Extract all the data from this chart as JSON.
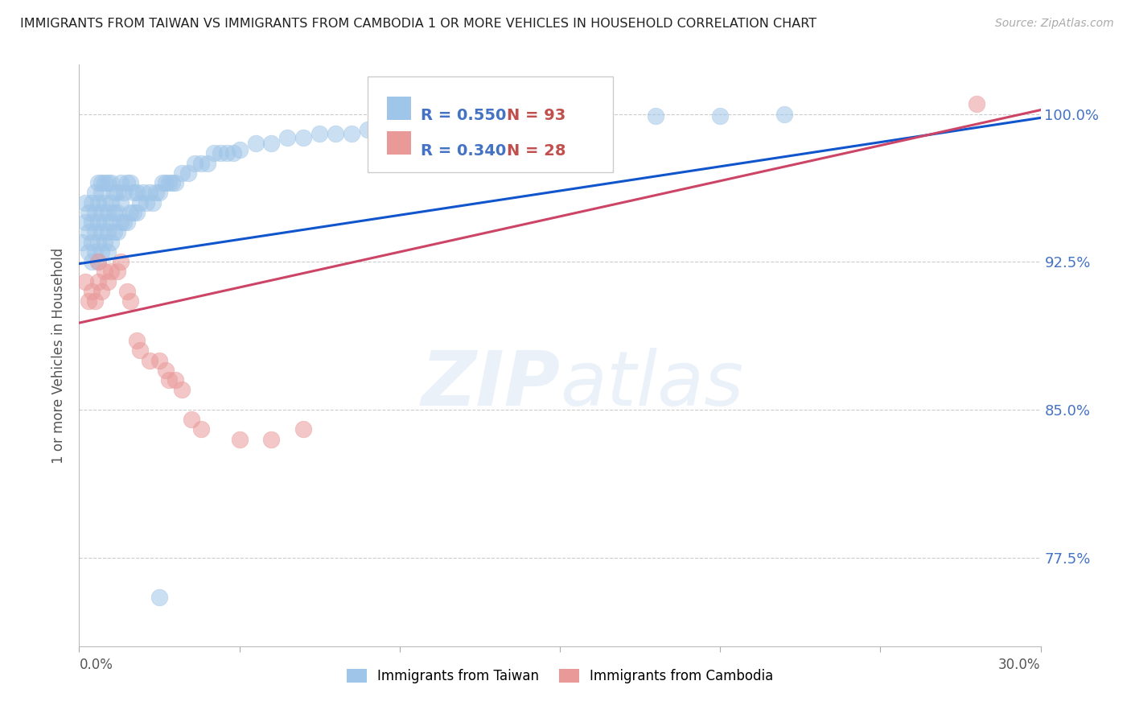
{
  "title": "IMMIGRANTS FROM TAIWAN VS IMMIGRANTS FROM CAMBODIA 1 OR MORE VEHICLES IN HOUSEHOLD CORRELATION CHART",
  "source": "Source: ZipAtlas.com",
  "ylabel": "1 or more Vehicles in Household",
  "yticks": [
    0.775,
    0.85,
    0.925,
    1.0
  ],
  "ytick_labels": [
    "77.5%",
    "85.0%",
    "92.5%",
    "100.0%"
  ],
  "xlim": [
    0.0,
    0.3
  ],
  "ylim": [
    0.73,
    1.025
  ],
  "taiwan_R": 0.55,
  "taiwan_N": 93,
  "cambodia_R": 0.34,
  "cambodia_N": 28,
  "blue_color": "#9fc5e8",
  "pink_color": "#ea9999",
  "blue_line_color": "#1155cc",
  "pink_line_color": "#cc4466",
  "legend_blue_text": "Immigrants from Taiwan",
  "legend_pink_text": "Immigrants from Cambodia",
  "taiwan_x": [
    0.001,
    0.002,
    0.002,
    0.003,
    0.003,
    0.003,
    0.004,
    0.004,
    0.004,
    0.004,
    0.005,
    0.005,
    0.005,
    0.005,
    0.006,
    0.006,
    0.006,
    0.006,
    0.006,
    0.007,
    0.007,
    0.007,
    0.007,
    0.007,
    0.008,
    0.008,
    0.008,
    0.008,
    0.009,
    0.009,
    0.009,
    0.009,
    0.01,
    0.01,
    0.01,
    0.01,
    0.011,
    0.011,
    0.011,
    0.012,
    0.012,
    0.012,
    0.013,
    0.013,
    0.013,
    0.014,
    0.014,
    0.015,
    0.015,
    0.016,
    0.016,
    0.017,
    0.017,
    0.018,
    0.018,
    0.019,
    0.02,
    0.021,
    0.022,
    0.023,
    0.024,
    0.025,
    0.026,
    0.027,
    0.028,
    0.029,
    0.03,
    0.032,
    0.034,
    0.036,
    0.038,
    0.04,
    0.042,
    0.044,
    0.046,
    0.048,
    0.05,
    0.055,
    0.06,
    0.065,
    0.07,
    0.075,
    0.08,
    0.085,
    0.09,
    0.1,
    0.11,
    0.12,
    0.15,
    0.18,
    0.2,
    0.22,
    0.025
  ],
  "taiwan_y": [
    0.935,
    0.945,
    0.955,
    0.93,
    0.94,
    0.95,
    0.925,
    0.935,
    0.945,
    0.955,
    0.93,
    0.94,
    0.95,
    0.96,
    0.925,
    0.935,
    0.945,
    0.955,
    0.965,
    0.93,
    0.94,
    0.95,
    0.96,
    0.965,
    0.935,
    0.945,
    0.955,
    0.965,
    0.93,
    0.94,
    0.95,
    0.965,
    0.935,
    0.945,
    0.955,
    0.965,
    0.94,
    0.95,
    0.96,
    0.94,
    0.95,
    0.96,
    0.945,
    0.955,
    0.965,
    0.945,
    0.96,
    0.945,
    0.965,
    0.95,
    0.965,
    0.95,
    0.96,
    0.95,
    0.96,
    0.955,
    0.96,
    0.955,
    0.96,
    0.955,
    0.96,
    0.96,
    0.965,
    0.965,
    0.965,
    0.965,
    0.965,
    0.97,
    0.97,
    0.975,
    0.975,
    0.975,
    0.98,
    0.98,
    0.98,
    0.98,
    0.982,
    0.985,
    0.985,
    0.988,
    0.988,
    0.99,
    0.99,
    0.99,
    0.992,
    0.993,
    0.995,
    0.995,
    0.998,
    0.999,
    0.999,
    1.0,
    0.755
  ],
  "cambodia_x": [
    0.002,
    0.003,
    0.004,
    0.005,
    0.006,
    0.006,
    0.007,
    0.008,
    0.009,
    0.01,
    0.012,
    0.013,
    0.015,
    0.016,
    0.018,
    0.019,
    0.022,
    0.025,
    0.027,
    0.028,
    0.03,
    0.032,
    0.035,
    0.038,
    0.05,
    0.06,
    0.07,
    0.28
  ],
  "cambodia_y": [
    0.915,
    0.905,
    0.91,
    0.905,
    0.915,
    0.925,
    0.91,
    0.92,
    0.915,
    0.92,
    0.92,
    0.925,
    0.91,
    0.905,
    0.885,
    0.88,
    0.875,
    0.875,
    0.87,
    0.865,
    0.865,
    0.86,
    0.845,
    0.84,
    0.835,
    0.835,
    0.84,
    1.005
  ],
  "taiwan_line_x": [
    0.0,
    0.3
  ],
  "taiwan_line_y": [
    0.924,
    0.998
  ],
  "cambodia_line_x": [
    0.0,
    0.3
  ],
  "cambodia_line_y": [
    0.894,
    1.002
  ]
}
